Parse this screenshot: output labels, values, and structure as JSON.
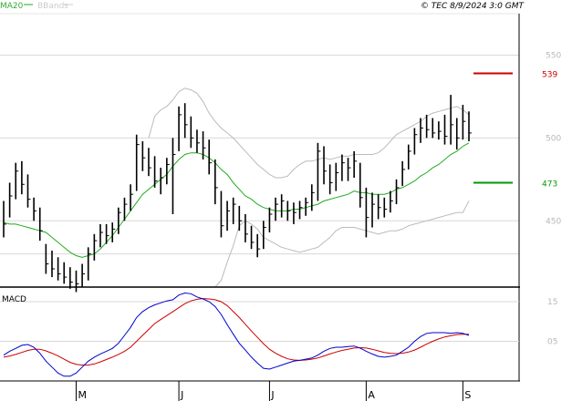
{
  "header": {
    "legend_ma": "MA20",
    "legend_bbands": "BBands",
    "copyright": "© TEC 8/9/2024 3:0 GMT"
  },
  "colors": {
    "ma": "#22aa22",
    "bbands": "#bbbbbb",
    "bars": "#000000",
    "resistance": "#cc0000",
    "support": "#009900",
    "macd": "#0000cc",
    "signal": "#cc0000",
    "grid": "#d8d8d8",
    "axis_text": "#b8b8b8"
  },
  "chart_data": [
    {
      "type": "ohlc",
      "ylim": [
        410,
        575
      ],
      "yticks": [
        450,
        500,
        550
      ],
      "xticks": [
        "M",
        "J",
        "J",
        "A",
        "S"
      ],
      "grid": true,
      "levels": [
        {
          "label": "539",
          "value": 539,
          "color": "#cc0000"
        },
        {
          "label": "473",
          "value": 473,
          "color": "#009900"
        }
      ],
      "bars": [
        {
          "high": 462,
          "low": 440,
          "close": 448
        },
        {
          "high": 473,
          "low": 452,
          "close": 465
        },
        {
          "high": 485,
          "low": 463,
          "close": 480
        },
        {
          "high": 486,
          "low": 466,
          "close": 472
        },
        {
          "high": 478,
          "low": 458,
          "close": 463
        },
        {
          "high": 464,
          "low": 450,
          "close": 456
        },
        {
          "high": 458,
          "low": 438,
          "close": 444
        },
        {
          "high": 436,
          "low": 418,
          "close": 424
        },
        {
          "high": 432,
          "low": 416,
          "close": 421
        },
        {
          "high": 428,
          "low": 414,
          "close": 418
        },
        {
          "high": 425,
          "low": 412,
          "close": 416
        },
        {
          "high": 422,
          "low": 409,
          "close": 413
        },
        {
          "high": 420,
          "low": 407,
          "close": 412
        },
        {
          "high": 424,
          "low": 410,
          "close": 418
        },
        {
          "high": 434,
          "low": 414,
          "close": 430
        },
        {
          "high": 442,
          "low": 426,
          "close": 438
        },
        {
          "high": 448,
          "low": 434,
          "close": 443
        },
        {
          "high": 448,
          "low": 436,
          "close": 441
        },
        {
          "high": 449,
          "low": 437,
          "close": 445
        },
        {
          "high": 458,
          "low": 442,
          "close": 455
        },
        {
          "high": 464,
          "low": 450,
          "close": 460
        },
        {
          "high": 472,
          "low": 456,
          "close": 466
        },
        {
          "high": 502,
          "low": 468,
          "close": 496
        },
        {
          "high": 498,
          "low": 480,
          "close": 488
        },
        {
          "high": 494,
          "low": 477,
          "close": 482
        },
        {
          "high": 489,
          "low": 470,
          "close": 474
        },
        {
          "high": 482,
          "low": 466,
          "close": 476
        },
        {
          "high": 488,
          "low": 472,
          "close": 484
        },
        {
          "high": 500,
          "low": 454,
          "close": 490
        },
        {
          "high": 519,
          "low": 492,
          "close": 514
        },
        {
          "high": 521,
          "low": 500,
          "close": 508
        },
        {
          "high": 513,
          "low": 494,
          "close": 500
        },
        {
          "high": 505,
          "low": 491,
          "close": 497
        },
        {
          "high": 504,
          "low": 487,
          "close": 494
        },
        {
          "high": 499,
          "low": 478,
          "close": 485
        },
        {
          "high": 487,
          "low": 460,
          "close": 470
        },
        {
          "high": 468,
          "low": 440,
          "close": 447
        },
        {
          "high": 462,
          "low": 444,
          "close": 456
        },
        {
          "high": 464,
          "low": 448,
          "close": 460
        },
        {
          "high": 459,
          "low": 444,
          "close": 450
        },
        {
          "high": 454,
          "low": 437,
          "close": 442
        },
        {
          "high": 447,
          "low": 433,
          "close": 437
        },
        {
          "high": 442,
          "low": 428,
          "close": 433
        },
        {
          "high": 450,
          "low": 433,
          "close": 446
        },
        {
          "high": 458,
          "low": 443,
          "close": 454
        },
        {
          "high": 464,
          "low": 450,
          "close": 460
        },
        {
          "high": 466,
          "low": 452,
          "close": 462
        },
        {
          "high": 462,
          "low": 450,
          "close": 456
        },
        {
          "high": 461,
          "low": 448,
          "close": 455
        },
        {
          "high": 462,
          "low": 451,
          "close": 458
        },
        {
          "high": 464,
          "low": 453,
          "close": 461
        },
        {
          "high": 472,
          "low": 456,
          "close": 467
        },
        {
          "high": 497,
          "low": 462,
          "close": 492
        },
        {
          "high": 495,
          "low": 472,
          "close": 480
        },
        {
          "high": 484,
          "low": 466,
          "close": 473
        },
        {
          "high": 485,
          "low": 468,
          "close": 479
        },
        {
          "high": 490,
          "low": 474,
          "close": 485
        },
        {
          "high": 488,
          "low": 474,
          "close": 482
        },
        {
          "high": 492,
          "low": 476,
          "close": 486
        },
        {
          "high": 485,
          "low": 458,
          "close": 464
        },
        {
          "high": 470,
          "low": 440,
          "close": 452
        },
        {
          "high": 467,
          "low": 446,
          "close": 460
        },
        {
          "high": 466,
          "low": 451,
          "close": 458
        },
        {
          "high": 464,
          "low": 452,
          "close": 457
        },
        {
          "high": 468,
          "low": 455,
          "close": 462
        },
        {
          "high": 475,
          "low": 460,
          "close": 470
        },
        {
          "high": 486,
          "low": 471,
          "close": 481
        },
        {
          "high": 496,
          "low": 481,
          "close": 492
        },
        {
          "high": 506,
          "low": 490,
          "close": 502
        },
        {
          "high": 512,
          "low": 497,
          "close": 506
        },
        {
          "high": 514,
          "low": 500,
          "close": 505
        },
        {
          "high": 512,
          "low": 500,
          "close": 503
        },
        {
          "high": 510,
          "low": 499,
          "close": 504
        },
        {
          "high": 514,
          "low": 496,
          "close": 501
        },
        {
          "high": 526,
          "low": 496,
          "close": 508
        },
        {
          "high": 512,
          "low": 493,
          "close": 500
        },
        {
          "high": 520,
          "low": 499,
          "close": 510
        },
        {
          "high": 516,
          "low": 498,
          "close": 503
        }
      ],
      "ma20": [
        449,
        448,
        448,
        447,
        446,
        445,
        444,
        443,
        440,
        437,
        434,
        431,
        429,
        428,
        429,
        430,
        433,
        437,
        441,
        446,
        451,
        456,
        461,
        466,
        469,
        472,
        475,
        478,
        483,
        487,
        490,
        491,
        491,
        490,
        488,
        485,
        481,
        478,
        473,
        469,
        465,
        463,
        460,
        458,
        457,
        456,
        456,
        456,
        457,
        457,
        458,
        459,
        460,
        462,
        463,
        464,
        465,
        466,
        468,
        467,
        467,
        466,
        466,
        466,
        467,
        469,
        470,
        472,
        474,
        477,
        479,
        482,
        484,
        487,
        490,
        492,
        495,
        497
      ],
      "bb_upper": [
        null,
        null,
        null,
        null,
        null,
        null,
        null,
        null,
        null,
        null,
        null,
        null,
        null,
        null,
        null,
        null,
        null,
        null,
        null,
        null,
        null,
        null,
        null,
        null,
        500,
        513,
        517,
        519,
        523,
        528,
        530,
        529,
        527,
        522,
        515,
        510,
        506,
        503,
        500,
        496,
        492,
        488,
        484,
        481,
        478,
        476,
        476,
        477,
        481,
        484,
        486,
        486,
        487,
        488,
        487,
        488,
        489,
        489,
        490,
        490,
        490,
        490,
        491,
        494,
        498,
        502,
        504,
        506,
        508,
        510,
        513,
        515,
        516,
        517,
        518,
        519,
        517,
        514
      ],
      "bb_lower": [
        null,
        null,
        null,
        null,
        null,
        null,
        null,
        null,
        null,
        null,
        null,
        null,
        null,
        null,
        null,
        null,
        null,
        null,
        null,
        null,
        null,
        null,
        null,
        null,
        null,
        null,
        null,
        null,
        null,
        null,
        null,
        null,
        null,
        null,
        null,
        410,
        414,
        425,
        435,
        447,
        450,
        448,
        445,
        440,
        438,
        436,
        434,
        433,
        432,
        431,
        432,
        433,
        434,
        437,
        440,
        444,
        446,
        446,
        446,
        445,
        444,
        443,
        442,
        443,
        444,
        444,
        445,
        447,
        448,
        449,
        450,
        451,
        452,
        453,
        454,
        455,
        455,
        462
      ]
    },
    {
      "type": "line",
      "title": "MACD",
      "ylim": [
        -0.5,
        1.8
      ],
      "yticks": [
        0.5,
        1.5
      ],
      "ytick_labels": [
        "05",
        "15"
      ],
      "series": [
        {
          "values": [
            0.15,
            0.25,
            0.32,
            0.4,
            0.42,
            0.35,
            0.2,
            0.0,
            -0.15,
            -0.3,
            -0.38,
            -0.38,
            -0.3,
            -0.15,
            0.0,
            0.1,
            0.18,
            0.25,
            0.32,
            0.45,
            0.65,
            0.85,
            1.1,
            1.25,
            1.35,
            1.42,
            1.47,
            1.52,
            1.55,
            1.67,
            1.72,
            1.7,
            1.62,
            1.57,
            1.5,
            1.38,
            1.18,
            0.92,
            0.68,
            0.45,
            0.28,
            0.1,
            -0.05,
            -0.18,
            -0.2,
            -0.15,
            -0.1,
            -0.05,
            0.0,
            0.02,
            0.05,
            0.08,
            0.15,
            0.25,
            0.32,
            0.35,
            0.35,
            0.37,
            0.38,
            0.33,
            0.25,
            0.18,
            0.12,
            0.1,
            0.12,
            0.15,
            0.25,
            0.35,
            0.5,
            0.62,
            0.7,
            0.72,
            0.72,
            0.72,
            0.7,
            0.72,
            0.7,
            0.65
          ]
        },
        {
          "values": [
            0.1,
            0.13,
            0.17,
            0.22,
            0.27,
            0.3,
            0.3,
            0.26,
            0.2,
            0.13,
            0.05,
            -0.03,
            -0.08,
            -0.1,
            -0.1,
            -0.07,
            -0.02,
            0.04,
            0.1,
            0.17,
            0.25,
            0.35,
            0.5,
            0.65,
            0.8,
            0.95,
            1.05,
            1.15,
            1.25,
            1.35,
            1.45,
            1.52,
            1.56,
            1.58,
            1.57,
            1.55,
            1.5,
            1.4,
            1.25,
            1.1,
            0.93,
            0.76,
            0.6,
            0.44,
            0.3,
            0.2,
            0.12,
            0.06,
            0.03,
            0.02,
            0.03,
            0.05,
            0.08,
            0.13,
            0.18,
            0.23,
            0.27,
            0.3,
            0.33,
            0.34,
            0.33,
            0.3,
            0.26,
            0.22,
            0.2,
            0.19,
            0.2,
            0.23,
            0.28,
            0.35,
            0.43,
            0.5,
            0.56,
            0.61,
            0.64,
            0.67,
            0.68,
            0.68
          ]
        }
      ]
    }
  ]
}
